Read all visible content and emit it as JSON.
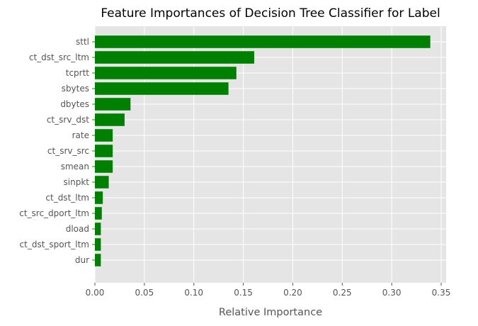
{
  "chart_data": {
    "type": "bar",
    "orientation": "horizontal",
    "title": "Feature Importances of Decision Tree Classifier for Label",
    "xlabel": "Relative Importance",
    "ylabel": "",
    "xlim": [
      0,
      0.355
    ],
    "xticks": [
      "0.00",
      "0.05",
      "0.10",
      "0.15",
      "0.20",
      "0.25",
      "0.30",
      "0.35"
    ],
    "xtick_values": [
      0,
      0.05,
      0.1,
      0.15,
      0.2,
      0.25,
      0.3,
      0.35
    ],
    "grid": true,
    "bar_color": "#008000",
    "plot_background": "#e5e5e5",
    "categories": [
      "sttl",
      "ct_dst_src_ltm",
      "tcprtt",
      "sbytes",
      "dbytes",
      "ct_srv_dst",
      "rate",
      "ct_srv_src",
      "smean",
      "sinpkt",
      "ct_dst_ltm",
      "ct_src_dport_ltm",
      "dload",
      "ct_dst_sport_ltm",
      "dur"
    ],
    "values": [
      0.339,
      0.161,
      0.143,
      0.135,
      0.036,
      0.03,
      0.018,
      0.018,
      0.018,
      0.014,
      0.008,
      0.007,
      0.006,
      0.006,
      0.006
    ]
  }
}
